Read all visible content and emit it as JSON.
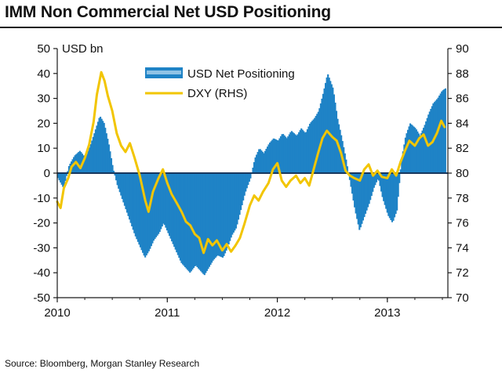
{
  "header": {
    "title": "IMM Non Commercial Net USD Positioning",
    "source": "Source: Bloomberg, Morgan Stanley Research"
  },
  "chart_data": {
    "type": "bar+line",
    "title": "IMM Non Commercial Net USD Positioning",
    "left_axis": {
      "label": "USD bn",
      "ylim": [
        -50,
        50
      ],
      "ticks": [
        50,
        40,
        30,
        20,
        10,
        0,
        -10,
        -20,
        -30,
        -40,
        -50
      ],
      "tick_labels": [
        "50",
        "40",
        "30",
        "20",
        "10",
        "0",
        "-10",
        "-20",
        "-30",
        "-40",
        "-50"
      ]
    },
    "right_axis": {
      "label": "DXY (RHS)",
      "ylim": [
        70,
        90
      ],
      "ticks": [
        90,
        88,
        86,
        84,
        82,
        80,
        78,
        76,
        74,
        72,
        70
      ],
      "tick_labels": [
        "90",
        "88",
        "86",
        "84",
        "82",
        "80",
        "78",
        "76",
        "74",
        "72",
        "70"
      ]
    },
    "x_axis": {
      "xlim": [
        2010.0,
        2013.55
      ],
      "ticks": [
        2010,
        2011,
        2012,
        2013
      ],
      "tick_labels": [
        "2010",
        "2011",
        "2012",
        "2013"
      ]
    },
    "legend": {
      "position": "top-center",
      "entries": [
        "USD Net Positioning",
        "DXY (RHS)"
      ]
    },
    "colors": {
      "positioning": "#1f83c6",
      "positioning_light": "#8fc3e6",
      "dxy": "#f2c500",
      "axis": "#1a1a1a",
      "zero_line": "#17375e"
    },
    "series": [
      {
        "name": "USD Net Positioning",
        "kind": "bar",
        "axis": "left",
        "points": [
          [
            2010.0,
            -2
          ],
          [
            2010.05,
            -6
          ],
          [
            2010.1,
            3
          ],
          [
            2010.15,
            7
          ],
          [
            2010.2,
            9
          ],
          [
            2010.25,
            6
          ],
          [
            2010.3,
            12
          ],
          [
            2010.33,
            16
          ],
          [
            2010.38,
            23
          ],
          [
            2010.42,
            20
          ],
          [
            2010.46,
            12
          ],
          [
            2010.5,
            2
          ],
          [
            2010.54,
            -5
          ],
          [
            2010.58,
            -10
          ],
          [
            2010.62,
            -15
          ],
          [
            2010.66,
            -20
          ],
          [
            2010.7,
            -25
          ],
          [
            2010.75,
            -30
          ],
          [
            2010.79,
            -34
          ],
          [
            2010.83,
            -31
          ],
          [
            2010.87,
            -27
          ],
          [
            2010.92,
            -24
          ],
          [
            2010.96,
            -20
          ],
          [
            2011.0,
            -24
          ],
          [
            2011.04,
            -28
          ],
          [
            2011.08,
            -32
          ],
          [
            2011.12,
            -36
          ],
          [
            2011.16,
            -38
          ],
          [
            2011.2,
            -40
          ],
          [
            2011.25,
            -37
          ],
          [
            2011.29,
            -39
          ],
          [
            2011.33,
            -41
          ],
          [
            2011.37,
            -38
          ],
          [
            2011.41,
            -35
          ],
          [
            2011.45,
            -33
          ],
          [
            2011.5,
            -34
          ],
          [
            2011.54,
            -30
          ],
          [
            2011.58,
            -25
          ],
          [
            2011.62,
            -22
          ],
          [
            2011.66,
            -15
          ],
          [
            2011.7,
            -8
          ],
          [
            2011.75,
            -2
          ],
          [
            2011.79,
            6
          ],
          [
            2011.83,
            10
          ],
          [
            2011.87,
            8
          ],
          [
            2011.92,
            12
          ],
          [
            2011.96,
            14
          ],
          [
            2012.0,
            13
          ],
          [
            2012.04,
            16
          ],
          [
            2012.08,
            14
          ],
          [
            2012.12,
            17
          ],
          [
            2012.17,
            15
          ],
          [
            2012.21,
            18
          ],
          [
            2012.25,
            16
          ],
          [
            2012.29,
            20
          ],
          [
            2012.33,
            22
          ],
          [
            2012.37,
            25
          ],
          [
            2012.41,
            32
          ],
          [
            2012.45,
            40
          ],
          [
            2012.5,
            34
          ],
          [
            2012.54,
            22
          ],
          [
            2012.58,
            14
          ],
          [
            2012.62,
            5
          ],
          [
            2012.66,
            -5
          ],
          [
            2012.7,
            -15
          ],
          [
            2012.74,
            -23
          ],
          [
            2012.78,
            -18
          ],
          [
            2012.83,
            -12
          ],
          [
            2012.87,
            -6
          ],
          [
            2012.91,
            -2
          ],
          [
            2012.95,
            -10
          ],
          [
            2013.0,
            -17
          ],
          [
            2013.04,
            -20
          ],
          [
            2013.08,
            -15
          ],
          [
            2013.12,
            5
          ],
          [
            2013.16,
            15
          ],
          [
            2013.2,
            20
          ],
          [
            2013.25,
            18
          ],
          [
            2013.29,
            15
          ],
          [
            2013.33,
            19
          ],
          [
            2013.37,
            24
          ],
          [
            2013.41,
            28
          ],
          [
            2013.45,
            30
          ],
          [
            2013.49,
            33
          ],
          [
            2013.52,
            34
          ]
        ]
      },
      {
        "name": "DXY (RHS)",
        "kind": "line",
        "axis": "right",
        "points": [
          [
            2010.0,
            77.7
          ],
          [
            2010.03,
            77.2
          ],
          [
            2010.06,
            78.8
          ],
          [
            2010.1,
            79.6
          ],
          [
            2010.13,
            80.5
          ],
          [
            2010.17,
            80.9
          ],
          [
            2010.21,
            80.4
          ],
          [
            2010.25,
            81.2
          ],
          [
            2010.29,
            82.3
          ],
          [
            2010.33,
            84.1
          ],
          [
            2010.36,
            86.3
          ],
          [
            2010.4,
            88.1
          ],
          [
            2010.43,
            87.4
          ],
          [
            2010.46,
            86.2
          ],
          [
            2010.5,
            85.0
          ],
          [
            2010.54,
            83.2
          ],
          [
            2010.58,
            82.2
          ],
          [
            2010.62,
            81.7
          ],
          [
            2010.66,
            82.4
          ],
          [
            2010.7,
            81.3
          ],
          [
            2010.75,
            79.8
          ],
          [
            2010.8,
            77.8
          ],
          [
            2010.83,
            76.9
          ],
          [
            2010.87,
            78.5
          ],
          [
            2010.92,
            79.6
          ],
          [
            2010.96,
            80.3
          ],
          [
            2011.0,
            79.2
          ],
          [
            2011.04,
            78.3
          ],
          [
            2011.08,
            77.7
          ],
          [
            2011.13,
            76.9
          ],
          [
            2011.17,
            76.1
          ],
          [
            2011.21,
            75.8
          ],
          [
            2011.25,
            75.1
          ],
          [
            2011.29,
            74.8
          ],
          [
            2011.33,
            73.6
          ],
          [
            2011.37,
            74.7
          ],
          [
            2011.41,
            74.2
          ],
          [
            2011.45,
            74.6
          ],
          [
            2011.5,
            73.8
          ],
          [
            2011.54,
            74.3
          ],
          [
            2011.58,
            73.7
          ],
          [
            2011.62,
            74.2
          ],
          [
            2011.66,
            74.8
          ],
          [
            2011.7,
            75.9
          ],
          [
            2011.75,
            77.4
          ],
          [
            2011.79,
            78.2
          ],
          [
            2011.83,
            77.8
          ],
          [
            2011.87,
            78.5
          ],
          [
            2011.92,
            79.2
          ],
          [
            2011.96,
            80.3
          ],
          [
            2012.0,
            80.8
          ],
          [
            2012.04,
            79.4
          ],
          [
            2012.08,
            78.9
          ],
          [
            2012.12,
            79.4
          ],
          [
            2012.17,
            79.8
          ],
          [
            2012.21,
            79.2
          ],
          [
            2012.25,
            79.6
          ],
          [
            2012.29,
            79.0
          ],
          [
            2012.33,
            80.3
          ],
          [
            2012.37,
            81.6
          ],
          [
            2012.41,
            82.8
          ],
          [
            2012.45,
            83.4
          ],
          [
            2012.5,
            82.9
          ],
          [
            2012.54,
            82.6
          ],
          [
            2012.58,
            81.6
          ],
          [
            2012.62,
            80.2
          ],
          [
            2012.66,
            79.8
          ],
          [
            2012.7,
            79.6
          ],
          [
            2012.75,
            79.4
          ],
          [
            2012.79,
            80.3
          ],
          [
            2012.83,
            80.7
          ],
          [
            2012.87,
            79.8
          ],
          [
            2012.91,
            80.2
          ],
          [
            2012.95,
            79.7
          ],
          [
            2013.0,
            79.6
          ],
          [
            2013.04,
            80.3
          ],
          [
            2013.08,
            79.8
          ],
          [
            2013.12,
            80.9
          ],
          [
            2013.16,
            81.8
          ],
          [
            2013.2,
            82.6
          ],
          [
            2013.25,
            82.2
          ],
          [
            2013.29,
            82.8
          ],
          [
            2013.33,
            83.1
          ],
          [
            2013.37,
            82.2
          ],
          [
            2013.41,
            82.5
          ],
          [
            2013.45,
            83.2
          ],
          [
            2013.49,
            84.2
          ],
          [
            2013.52,
            83.7
          ]
        ]
      }
    ]
  }
}
